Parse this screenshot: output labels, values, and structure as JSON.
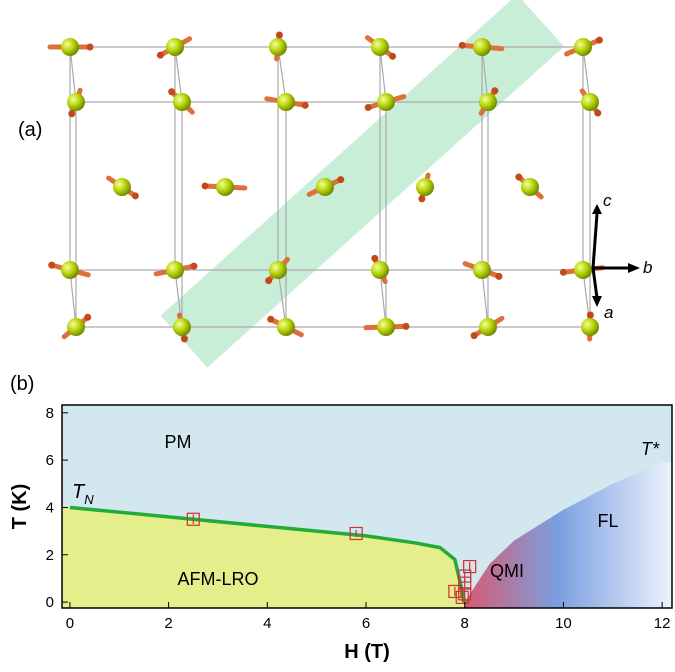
{
  "panel_a": {
    "label": "(a)",
    "axis_labels": [
      "c",
      "b",
      "a"
    ]
  },
  "chart_data": {
    "type": "scatter",
    "panel_label": "(b)",
    "xlabel": "H (T)",
    "ylabel": "T (K)",
    "xlim": [
      -0.16,
      12.2
    ],
    "ylim": [
      -0.25,
      8.33
    ],
    "xticks": [
      0,
      2,
      4,
      6,
      8,
      10,
      12
    ],
    "yticks": [
      0,
      2,
      4,
      6,
      8
    ],
    "annotations": [
      "PM",
      "AFM-LRO",
      "QMI",
      "FL",
      "T*"
    ],
    "tn_label": {
      "main": "T",
      "sub": "N"
    },
    "phase_line": {
      "color": "#22aa3a",
      "x": [
        0,
        2,
        4,
        6,
        7,
        7.5,
        7.8,
        8.0
      ],
      "y": [
        4.0,
        3.6,
        3.2,
        2.8,
        2.5,
        2.3,
        1.8,
        0
      ]
    },
    "crossover": {
      "x": [
        8.0,
        8.5,
        9,
        10,
        11,
        12
      ],
      "y": [
        0,
        1.6,
        2.6,
        3.9,
        5.0,
        5.9
      ]
    },
    "series": [
      {
        "color": "#cc3333",
        "x": [
          2.5,
          5.8,
          8.1,
          8.0,
          8.0,
          7.8,
          8.0,
          7.95
        ],
        "y": [
          3.5,
          2.9,
          1.5,
          1.1,
          0.8,
          0.45,
          0.35,
          0.2
        ],
        "yerr": [
          0.2,
          0.15,
          0.2,
          0.2,
          0.2,
          0.2,
          0.2,
          0.2
        ]
      }
    ]
  }
}
